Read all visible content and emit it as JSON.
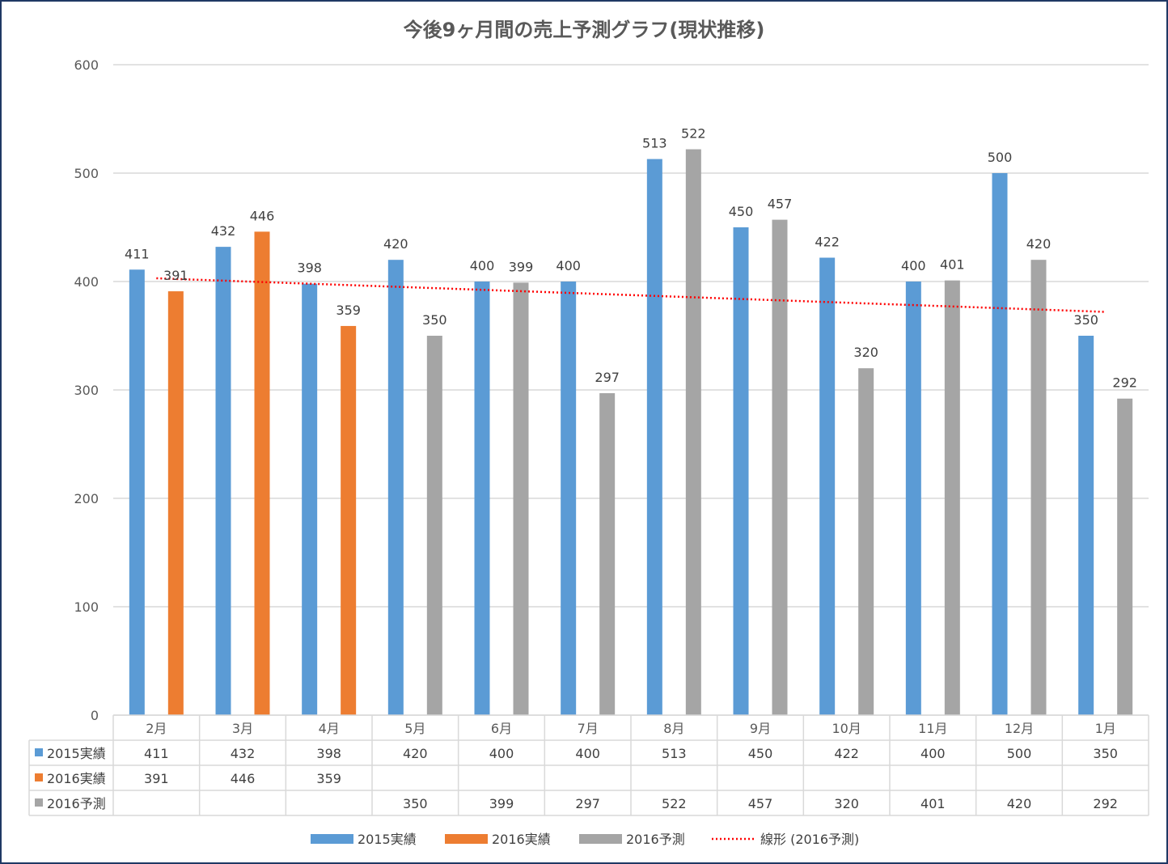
{
  "chart_data": {
    "type": "bar",
    "title": "今後9ヶ月間の売上予測グラフ(現状推移)",
    "categories": [
      "2月",
      "3月",
      "4月",
      "5月",
      "6月",
      "7月",
      "8月",
      "9月",
      "10月",
      "11月",
      "12月",
      "1月"
    ],
    "ylim": [
      0,
      600
    ],
    "yticks": [
      0,
      100,
      200,
      300,
      400,
      500,
      600
    ],
    "grid": true,
    "legend_position": "bottom",
    "data_table": true,
    "series": [
      {
        "name": "2015実績",
        "color": "#5b9bd5",
        "values": [
          411,
          432,
          398,
          420,
          400,
          400,
          513,
          450,
          422,
          400,
          500,
          350
        ]
      },
      {
        "name": "2016実績",
        "color": "#ed7d31",
        "values": [
          391,
          446,
          359,
          null,
          null,
          null,
          null,
          null,
          null,
          null,
          null,
          null
        ]
      },
      {
        "name": "2016予測",
        "color": "#a5a5a5",
        "values": [
          null,
          null,
          null,
          350,
          399,
          297,
          522,
          457,
          320,
          401,
          420,
          292
        ]
      }
    ],
    "trendline": {
      "name": "線形 (2016予測)",
      "type": "linear",
      "color": "#ff0000",
      "style": "dotted",
      "start_value": 403,
      "end_value": 372
    }
  }
}
